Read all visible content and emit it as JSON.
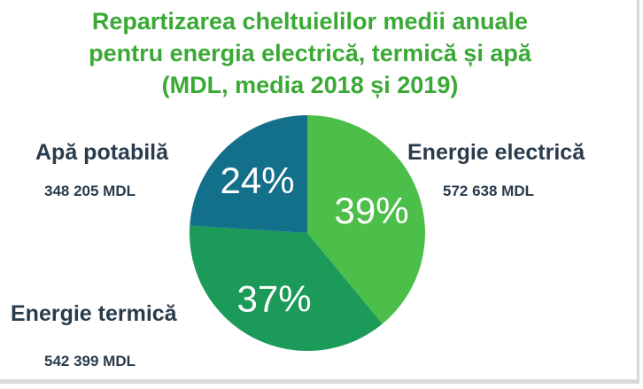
{
  "title_lines": [
    "Repartizarea cheltuielilor medii anuale",
    "pentru energia electrică, termică și apă",
    "(MDL, media 2018 și 2019)"
  ],
  "colors": {
    "title": "#3aa935",
    "labels": "#2a3b4c"
  },
  "chart_data": {
    "type": "pie",
    "title": "Repartizarea cheltuielilor medii anuale pentru energia electrică, termică și apă (MDL, media 2018 și 2019)",
    "slices": [
      {
        "name": "Energie electrică",
        "amount_label": "572 638 MDL",
        "value": 572638,
        "percent": 39,
        "percent_label": "39%",
        "color": "#4cbf4a"
      },
      {
        "name": "Energie termică",
        "amount_label": "542 399 MDL",
        "value": 542399,
        "percent": 37,
        "percent_label": "37%",
        "color": "#1b9a5a"
      },
      {
        "name": "Apă potabilă",
        "amount_label": "348 205 MDL",
        "value": 348205,
        "percent": 24,
        "percent_label": "24%",
        "color": "#13708b"
      }
    ]
  }
}
